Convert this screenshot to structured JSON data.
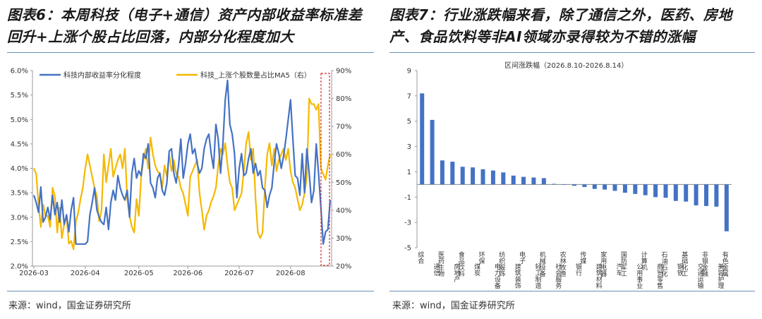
{
  "left_panel": {
    "title_line1": "图表6：本周科技（电子+通信）资产内部收益率标准差",
    "title_line2": "回升+上涨个股占比回落，内部分化程度加大",
    "source": "来源：wind，国金证券研究所"
  },
  "right_panel": {
    "title_line1": "图表7：行业涨跌幅来看，除了通信之外，医药、房地",
    "title_line2": "产、食品饮料等非AI领域亦录得较为不错的涨幅",
    "source": "来源：wind，国金证券研究所"
  },
  "colors": {
    "blue": "#4472c4",
    "gold": "#f5b800",
    "highlight": "#d9302c",
    "rule": "#6b8fb5"
  },
  "chart_data": [
    {
      "type": "line",
      "legend": {
        "placement": "top",
        "entries": [
          "科技内部收益率分化程度",
          "科技_上涨个股数量占比MA5（右）"
        ]
      },
      "x_tick_labels": [
        "2026-03",
        "2026-04",
        "2026-05",
        "2026-06",
        "2026-07",
        "2026-08"
      ],
      "y_left": {
        "ticks": [
          "2.0%",
          "2.5%",
          "3.0%",
          "3.5%",
          "4.0%",
          "4.5%",
          "5.0%",
          "5.5%",
          "6.0%"
        ],
        "lim": [
          2.0,
          6.0
        ]
      },
      "y_right": {
        "ticks": [
          "20%",
          "30%",
          "40%",
          "50%",
          "60%",
          "70%",
          "80%",
          "90%"
        ],
        "lim": [
          20,
          90
        ]
      },
      "series": [
        {
          "name": "科技内部收益率分化程度",
          "axis": "left",
          "color": "#4472c4",
          "values": [
            3.45,
            3.3,
            3.1,
            3.62,
            2.9,
            3.0,
            3.2,
            2.95,
            3.45,
            3.05,
            3.3,
            2.9,
            3.35,
            2.85,
            3.05,
            2.7,
            3.15,
            3.4,
            2.45,
            2.45,
            2.45,
            2.45,
            2.45,
            2.5,
            3.05,
            3.3,
            3.6,
            3.15,
            3.0,
            2.9,
            2.85,
            3.2,
            2.75,
            3.3,
            3.55,
            3.35,
            3.85,
            3.6,
            3.45,
            3.35,
            3.55,
            3.0,
            3.9,
            4.2,
            3.8,
            3.95,
            3.85,
            4.3,
            4.2,
            4.5,
            3.7,
            3.6,
            3.4,
            3.8,
            3.9,
            3.55,
            3.45,
            3.7,
            4.35,
            4.4,
            3.9,
            3.7,
            4.05,
            4.6,
            3.8,
            4.1,
            4.5,
            4.7,
            4.3,
            4.4,
            4.1,
            3.9,
            4.0,
            4.4,
            4.6,
            4.7,
            4.3,
            4.0,
            4.9,
            4.6,
            3.9,
            4.5,
            5.4,
            5.8,
            4.9,
            4.7,
            4.3,
            3.4,
            4.0,
            4.3,
            3.85,
            3.9,
            4.2,
            4.4,
            3.9,
            4.1,
            3.85,
            3.95,
            3.6,
            3.55,
            3.2,
            3.45,
            3.6,
            4.1,
            4.5,
            4.3,
            4.0,
            4.25,
            4.6,
            5.0,
            5.4,
            4.6,
            3.85,
            3.8,
            3.45,
            4.3,
            3.5,
            4.4,
            3.9,
            3.3,
            3.55,
            4.5,
            3.9,
            3.2,
            2.45,
            2.7,
            2.75,
            3.35
          ]
        },
        {
          "name": "科技_上涨个股数量占比MA5（右）",
          "axis": "right",
          "color": "#f5b800",
          "values": [
            55,
            53,
            42,
            34,
            42,
            38,
            38,
            34,
            48,
            45,
            32,
            41,
            30,
            35,
            38,
            28,
            29,
            26,
            36,
            39,
            44,
            48,
            55,
            60,
            56,
            52,
            48,
            45,
            36,
            40,
            60,
            50,
            56,
            62,
            52,
            55,
            58,
            60,
            55,
            62,
            44,
            38,
            34,
            32,
            44,
            38,
            52,
            58,
            62,
            55,
            66,
            60,
            56,
            54,
            53,
            48,
            56,
            52,
            60,
            54,
            58,
            53,
            52,
            48,
            46,
            42,
            38,
            52,
            54,
            56,
            58,
            46,
            40,
            33,
            38,
            40,
            43,
            45,
            48,
            56,
            62,
            60,
            64,
            56,
            50,
            48,
            40,
            42,
            44,
            46,
            54,
            64,
            68,
            58,
            62,
            44,
            32,
            30,
            32,
            48,
            60,
            64,
            56,
            62,
            54,
            58,
            60,
            62,
            58,
            62,
            54,
            50,
            48,
            44,
            40,
            42,
            46,
            52,
            80,
            78,
            78,
            76,
            78,
            55,
            53,
            51,
            56,
            60
          ]
        }
      ]
    },
    {
      "type": "bar",
      "title": "区间涨跌幅（2026.8.10-2026.8.14）",
      "ylim": [
        -5,
        9
      ],
      "y_ticks": [
        "9",
        "7",
        "5",
        "3",
        "1",
        "-1",
        "-3",
        "-5"
      ],
      "categories": [
        "综合",
        "通信",
        "医药生物",
        "房地产",
        "食品饮料",
        "煤炭",
        "环保",
        "电力设备",
        "纺织服饰",
        "建筑装饰",
        "电子",
        "轻工制造",
        "机械设备",
        "社会服务",
        "农林牧渔",
        "银行",
        "传媒",
        "建筑材料",
        "家用电器",
        "汽车",
        "国防军工",
        "公用事业",
        "计算机",
        "商贸零售",
        "石油石化",
        "钢铁",
        "基础化工",
        "交通运输",
        "非银金融",
        "美容护理",
        "有色金属"
      ],
      "values": [
        7.2,
        5.1,
        1.9,
        1.8,
        1.4,
        1.35,
        1.2,
        1.1,
        0.95,
        0.7,
        0.6,
        0.55,
        0.5,
        0.05,
        0.02,
        -0.1,
        -0.2,
        -0.35,
        -0.4,
        -0.5,
        -0.65,
        -0.75,
        -0.85,
        -1.0,
        -1.05,
        -1.3,
        -1.35,
        -1.65,
        -1.7,
        -1.75,
        -3.7
      ],
      "color": "#4472c4"
    }
  ]
}
